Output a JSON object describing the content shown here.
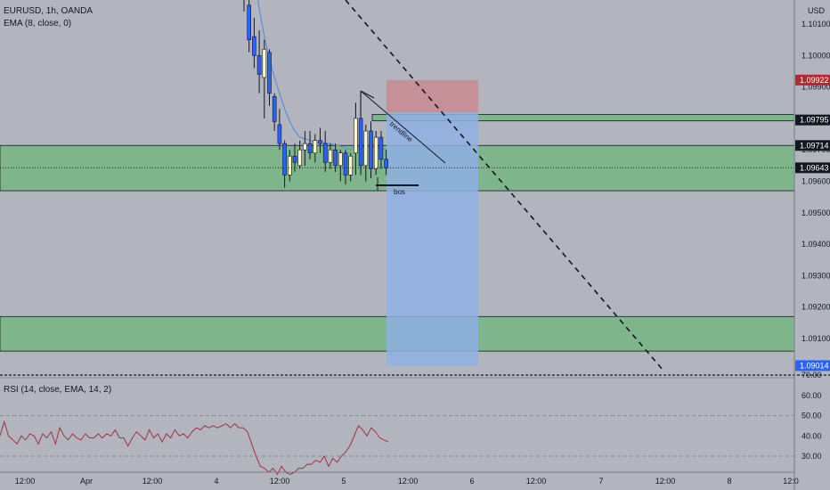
{
  "header": {
    "symbol_line": "EURUSD, 1h, OANDA",
    "indicator_line": "EMA (8, close, 0)",
    "currency": "USD"
  },
  "rsi_panel": {
    "label": "RSI (14, close, EMA, 14, 2)"
  },
  "colors": {
    "background": "#b2b5be",
    "zone_fill": "#7fb58a",
    "stop_fill": "#c98a92",
    "target_fill": "#8fb0e3",
    "candle_up": "#fff7cc",
    "candle_down": "#2962ff",
    "ema": "#5b8fd6",
    "rsi_line": "#a3333f",
    "badge_red": "#b22833",
    "badge_dark": "#131722",
    "badge_blue": "#2962ff"
  },
  "chart_data": [
    {
      "type": "candlestick",
      "title": "EURUSD, 1h, OANDA",
      "y_unit": "USD",
      "ylim": [
        1.0896,
        1.1025
      ],
      "x_ticks": [
        "12:00",
        "Apr",
        "12:00",
        "4",
        "12:00",
        "5",
        "12:00",
        "6",
        "12:00",
        "7",
        "12:00",
        "8",
        "12:0"
      ],
      "y_ticks": [
        "1.10100",
        "1.10000",
        "1.09900",
        "1.09700",
        "1.09600",
        "1.09500",
        "1.09400",
        "1.09300",
        "1.09200",
        "1.09100"
      ],
      "price_badges": [
        {
          "label": "1.09922",
          "value": 1.09922,
          "role": "stop-loss"
        },
        {
          "label": "1.09795",
          "value": 1.09795,
          "role": "zone"
        },
        {
          "label": "1.09714",
          "value": 1.09714,
          "role": "last-line"
        },
        {
          "label": "1.09643",
          "value": 1.09643,
          "role": "current-price"
        },
        {
          "label": "1.09014",
          "value": 1.09014,
          "role": "target"
        }
      ],
      "candles": [
        {
          "o": 1.103,
          "h": 1.1035,
          "l": 1.1014,
          "c": 1.1018
        },
        {
          "o": 1.1016,
          "h": 1.1022,
          "l": 1.1001,
          "c": 1.1005
        },
        {
          "o": 1.1006,
          "h": 1.1012,
          "l": 1.0996,
          "c": 1.1
        },
        {
          "o": 1.1,
          "h": 1.1008,
          "l": 1.0988,
          "c": 1.0994
        },
        {
          "o": 1.0993,
          "h": 1.1005,
          "l": 1.098,
          "c": 1.1002
        },
        {
          "o": 1.1001,
          "h": 1.1002,
          "l": 1.0984,
          "c": 1.0988
        },
        {
          "o": 1.0987,
          "h": 1.0988,
          "l": 1.0976,
          "c": 1.0979
        },
        {
          "o": 1.0978,
          "h": 1.0983,
          "l": 1.097,
          "c": 1.0972
        },
        {
          "o": 1.0972,
          "h": 1.0973,
          "l": 1.0958,
          "c": 1.0962
        },
        {
          "o": 1.0962,
          "h": 1.097,
          "l": 1.096,
          "c": 1.0968
        },
        {
          "o": 1.0968,
          "h": 1.0972,
          "l": 1.0963,
          "c": 1.0966
        },
        {
          "o": 1.0965,
          "h": 1.0973,
          "l": 1.0964,
          "c": 1.097
        },
        {
          "o": 1.097,
          "h": 1.0976,
          "l": 1.0965,
          "c": 1.0972
        },
        {
          "o": 1.0972,
          "h": 1.0976,
          "l": 1.0967,
          "c": 1.0969
        },
        {
          "o": 1.0969,
          "h": 1.0975,
          "l": 1.0966,
          "c": 1.0973
        },
        {
          "o": 1.0973,
          "h": 1.0977,
          "l": 1.0969,
          "c": 1.0972
        },
        {
          "o": 1.0972,
          "h": 1.0976,
          "l": 1.0963,
          "c": 1.0966
        },
        {
          "o": 1.0966,
          "h": 1.0972,
          "l": 1.0964,
          "c": 1.097
        },
        {
          "o": 1.097,
          "h": 1.0972,
          "l": 1.0963,
          "c": 1.0965
        },
        {
          "o": 1.0965,
          "h": 1.097,
          "l": 1.096,
          "c": 1.0969
        },
        {
          "o": 1.0969,
          "h": 1.097,
          "l": 1.0959,
          "c": 1.0962
        },
        {
          "o": 1.0962,
          "h": 1.0969,
          "l": 1.096,
          "c": 1.0968
        },
        {
          "o": 1.0969,
          "h": 1.0985,
          "l": 1.0962,
          "c": 1.098
        },
        {
          "o": 1.098,
          "h": 1.0988,
          "l": 1.0962,
          "c": 1.0965
        },
        {
          "o": 1.0965,
          "h": 1.0978,
          "l": 1.096,
          "c": 1.0976
        },
        {
          "o": 1.0976,
          "h": 1.0979,
          "l": 1.0961,
          "c": 1.0964
        },
        {
          "o": 1.0964,
          "h": 1.0976,
          "l": 1.0962,
          "c": 1.0974
        },
        {
          "o": 1.0974,
          "h": 1.0976,
          "l": 1.0964,
          "c": 1.0967
        },
        {
          "o": 1.0967,
          "h": 1.097,
          "l": 1.0962,
          "c": 1.09643
        }
      ],
      "ema_values": [
        1.1042,
        1.1035,
        1.1025,
        1.1015,
        1.1006,
        1.0999,
        1.0993,
        1.0988,
        1.0983,
        1.0979,
        1.0976,
        1.0974,
        1.09735,
        1.0973,
        1.09725,
        1.09725,
        1.09722,
        1.0972,
        1.09715,
        1.09712,
        1.09705,
        1.097,
        1.09715,
        1.09705,
        1.09715,
        1.09705,
        1.0971,
        1.09705,
        1.097
      ],
      "zones": [
        {
          "low": 1.0957,
          "high": 1.09714
        },
        {
          "low": 1.0906,
          "high": 1.0917
        }
      ],
      "zone_line": {
        "low": 1.09795,
        "high": 1.0981
      },
      "position": {
        "entry": 1.09819,
        "stop": 1.09922,
        "target": 1.09014
      },
      "annotations": [
        {
          "text": "trendline",
          "kind": "trendline"
        },
        {
          "text": "bos",
          "kind": "break-of-structure"
        }
      ]
    },
    {
      "type": "line",
      "title": "RSI (14, close, EMA, 14, 2)",
      "ylim": [
        20,
        72
      ],
      "y_ticks": [
        "70.00",
        "60.00",
        "50.00",
        "40.00",
        "30.00"
      ],
      "series": [
        {
          "values": [
            40,
            47,
            40,
            38,
            36,
            40,
            38,
            41,
            40,
            36,
            41,
            39,
            42,
            36,
            44,
            40,
            38,
            41,
            39,
            38,
            41,
            39,
            39,
            41,
            39,
            41,
            40,
            43,
            39,
            39,
            35,
            39,
            42,
            40,
            38,
            43,
            39,
            41,
            37,
            41,
            39,
            43,
            40,
            41,
            39,
            42,
            44,
            43,
            45,
            44,
            45,
            44,
            45,
            46,
            44,
            46,
            44,
            44,
            42,
            36,
            30,
            25,
            24,
            22,
            24,
            21,
            25,
            22,
            21,
            22,
            24,
            24,
            26,
            26,
            28,
            27,
            30,
            25,
            29,
            27,
            30,
            32,
            35,
            40,
            45,
            43,
            40,
            44,
            42,
            39,
            38,
            37
          ]
        }
      ]
    }
  ]
}
